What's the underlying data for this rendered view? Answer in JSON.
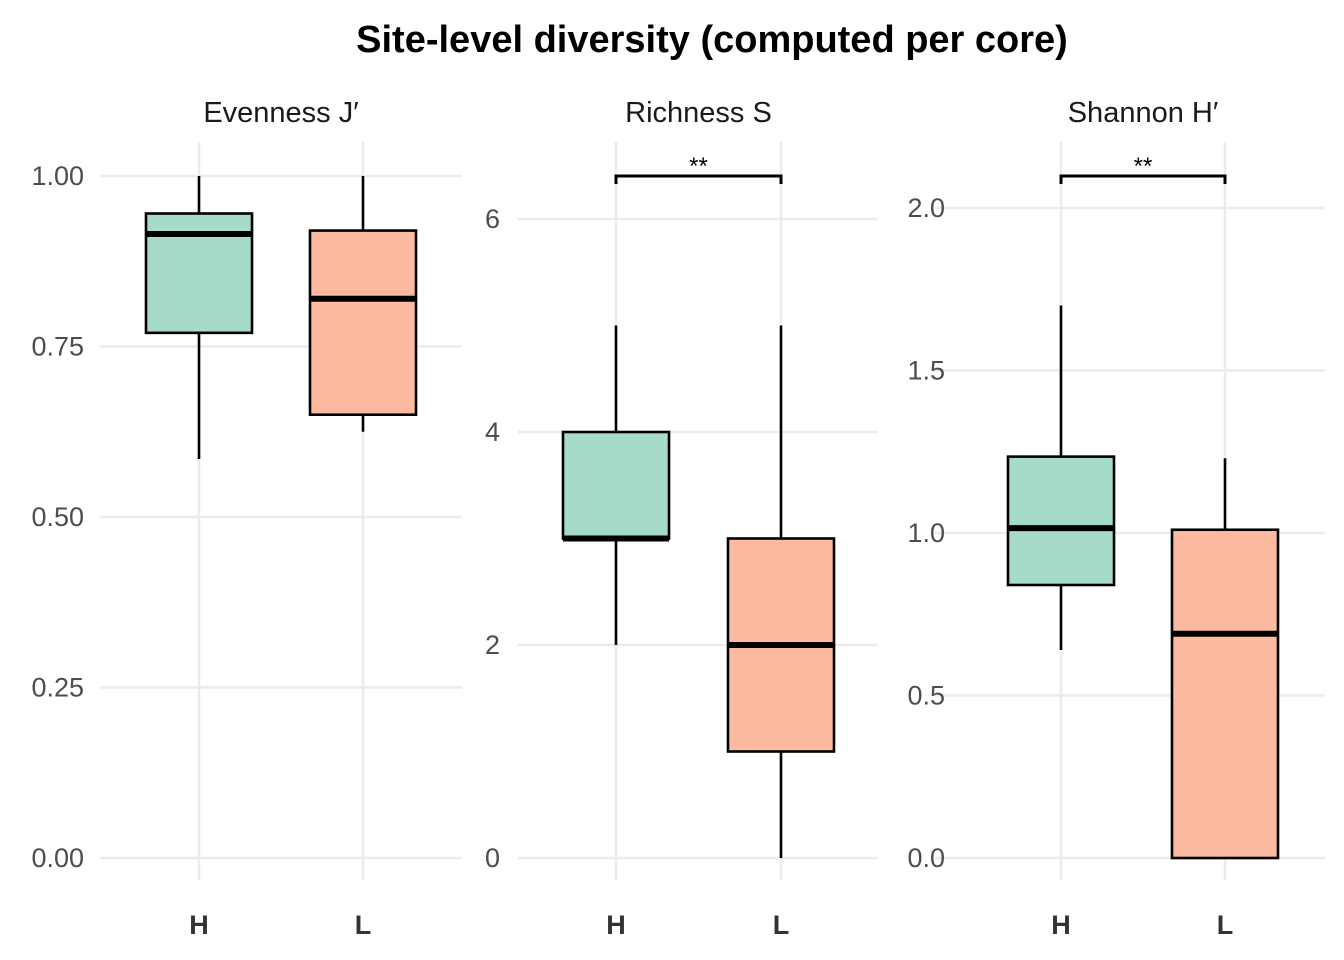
{
  "title": "Site-level diversity (computed per core)",
  "colors": {
    "H": "#a6dbca",
    "L": "#fcbba1",
    "grid": "#ebebeb"
  },
  "chart_data": [
    {
      "type": "box",
      "facet": "Evenness J′",
      "categories": [
        "H",
        "L"
      ],
      "ylim": [
        0,
        1.0
      ],
      "yticks": [
        "0.00",
        "0.25",
        "0.50",
        "0.75",
        "1.00"
      ],
      "ytick_values": [
        0,
        0.25,
        0.5,
        0.75,
        1.0
      ],
      "boxes": [
        {
          "group": "H",
          "min": 0.585,
          "q1": 0.77,
          "median": 0.915,
          "q3": 0.945,
          "max": 1.0
        },
        {
          "group": "L",
          "min": 0.625,
          "q1": 0.65,
          "median": 0.82,
          "q3": 0.92,
          "max": 1.0
        }
      ],
      "significance": null
    },
    {
      "type": "box",
      "facet": "Richness S",
      "categories": [
        "H",
        "L"
      ],
      "ylim": [
        0,
        6.4
      ],
      "yticks": [
        "0",
        "2",
        "4",
        "6"
      ],
      "ytick_values": [
        0,
        2,
        4,
        6
      ],
      "boxes": [
        {
          "group": "H",
          "min": 2,
          "q1": 3,
          "median": 3,
          "q3": 4,
          "max": 5
        },
        {
          "group": "L",
          "min": 0,
          "q1": 1,
          "median": 2,
          "q3": 3,
          "max": 5
        }
      ],
      "significance": {
        "label": "**",
        "y": 6.4
      }
    },
    {
      "type": "box",
      "facet": "Shannon H′",
      "categories": [
        "H",
        "L"
      ],
      "ylim": [
        0,
        2.1
      ],
      "yticks": [
        "0.0",
        "0.5",
        "1.0",
        "1.5",
        "2.0"
      ],
      "ytick_values": [
        0,
        0.5,
        1.0,
        1.5,
        2.0
      ],
      "boxes": [
        {
          "group": "H",
          "min": 0.64,
          "q1": 0.84,
          "median": 1.015,
          "q3": 1.235,
          "max": 1.7
        },
        {
          "group": "L",
          "min": 0.0,
          "q1": 0.0,
          "median": 0.69,
          "q3": 1.01,
          "max": 1.23
        }
      ],
      "significance": {
        "label": "**",
        "y": 2.1
      }
    }
  ]
}
